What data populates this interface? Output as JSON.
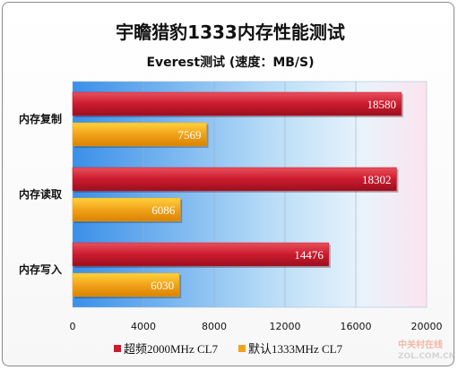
{
  "chart_data": {
    "type": "bar",
    "orientation": "horizontal",
    "title": "宇瞻猎豹1333内存性能测试",
    "subtitle": "Everest测试 (速度：MB/S)",
    "categories": [
      "内存复制",
      "内存读取",
      "内存写入"
    ],
    "series": [
      {
        "name": "超频2000MHz CL7",
        "color": "#cc1b2e",
        "values": [
          18580,
          18302,
          14476
        ]
      },
      {
        "name": "默认1333MHz CL7",
        "color": "#f2a21a",
        "values": [
          7569,
          6086,
          6030
        ]
      }
    ],
    "xlim": [
      0,
      20000
    ],
    "xticks": [
      0,
      4000,
      8000,
      12000,
      16000,
      20000
    ],
    "grid": true,
    "legend_position": "bottom"
  },
  "watermark": {
    "line1": "中关村在线",
    "line2": "ZOL.COM.CN"
  }
}
